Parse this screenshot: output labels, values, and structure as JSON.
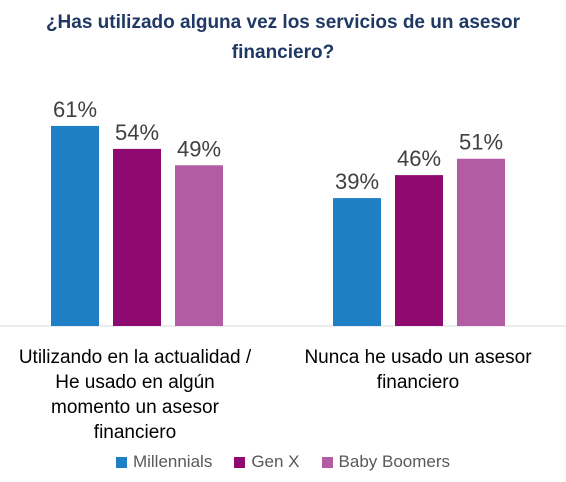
{
  "chart_data": {
    "type": "bar",
    "title_lines": [
      "¿Has utilizado alguna vez los servicios de un asesor",
      "financiero?"
    ],
    "categories": [
      [
        "Utilizando en la actualidad /",
        "He usado en algún",
        "momento un asesor",
        "financiero"
      ],
      [
        "Nunca he usado un asesor",
        "financiero"
      ]
    ],
    "series": [
      {
        "name": "Millennials",
        "color": "#1f7fc4",
        "values": [
          61,
          39
        ],
        "labels": [
          "61%",
          "39%"
        ]
      },
      {
        "name": "Gen X",
        "color": "#8e0a70",
        "values": [
          54,
          46
        ],
        "labels": [
          "54%",
          "46%"
        ]
      },
      {
        "name": "Baby Boomers",
        "color": "#b25ca4",
        "values": [
          49,
          51
        ],
        "labels": [
          "49%",
          "51%"
        ]
      }
    ],
    "ylim": [
      0,
      100
    ],
    "grid": false,
    "legend_position": "bottom"
  }
}
